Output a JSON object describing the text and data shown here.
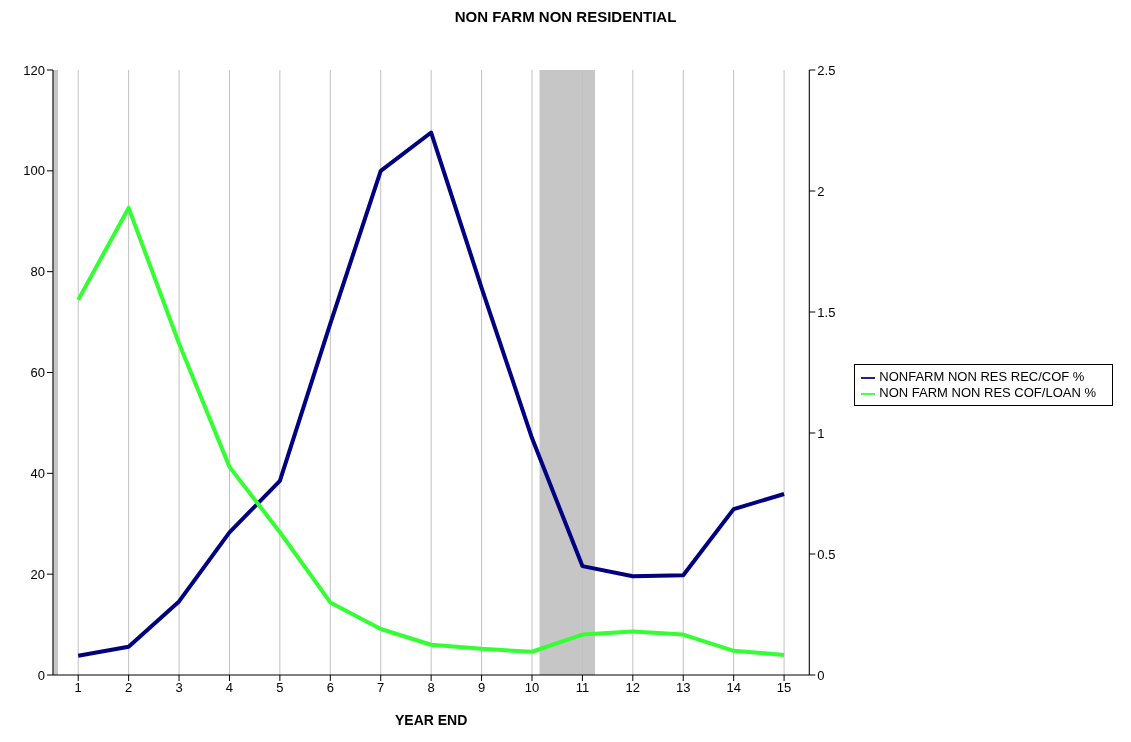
{
  "chart_data": {
    "type": "line",
    "title": "NON FARM NON RESIDENTIAL",
    "xlabel": "YEAR END",
    "x": [
      1,
      2,
      3,
      4,
      5,
      6,
      7,
      8,
      9,
      10,
      11,
      12,
      13,
      14,
      15
    ],
    "xlim": [
      0.5,
      15.5
    ],
    "xticks": [
      1,
      2,
      3,
      4,
      5,
      6,
      7,
      8,
      9,
      10,
      11,
      12,
      13,
      14,
      15
    ],
    "ylim": [
      0,
      120
    ],
    "yticks": [
      0,
      20,
      40,
      60,
      80,
      100,
      120
    ],
    "y2lim": [
      0,
      2.5
    ],
    "y2ticks": [
      0,
      0.5,
      1,
      1.5,
      2,
      2.5
    ],
    "series": [
      {
        "name": "NONFARM NON RES REC/COF %",
        "color": "#000080",
        "values": [
          3.8,
          5.6,
          14.6,
          28.3,
          38.5,
          69.7,
          100,
          107.6,
          76.8,
          47,
          21.6,
          19.6,
          19.8,
          32.9,
          35.9
        ]
      },
      {
        "name": "NON FARM NON RES COF/LOAN %",
        "color": "#33ff33",
        "axis": "y2",
        "values": [
          1.55,
          1.93,
          1.37,
          0.86,
          0.59,
          0.3,
          0.19,
          0.125,
          0.108,
          0.096,
          0.167,
          0.18,
          0.167,
          0.1,
          0.083
        ]
      }
    ],
    "bands": [
      {
        "axis": "x",
        "from": 0.5,
        "to": 0.6,
        "color": "#c0c0c0"
      },
      {
        "axis": "x",
        "from": 10.15,
        "to": 11.25,
        "color": "#c0c0c0"
      }
    ],
    "grid": "x",
    "legend": "right",
    "marker": "none",
    "line_style": "solid"
  }
}
